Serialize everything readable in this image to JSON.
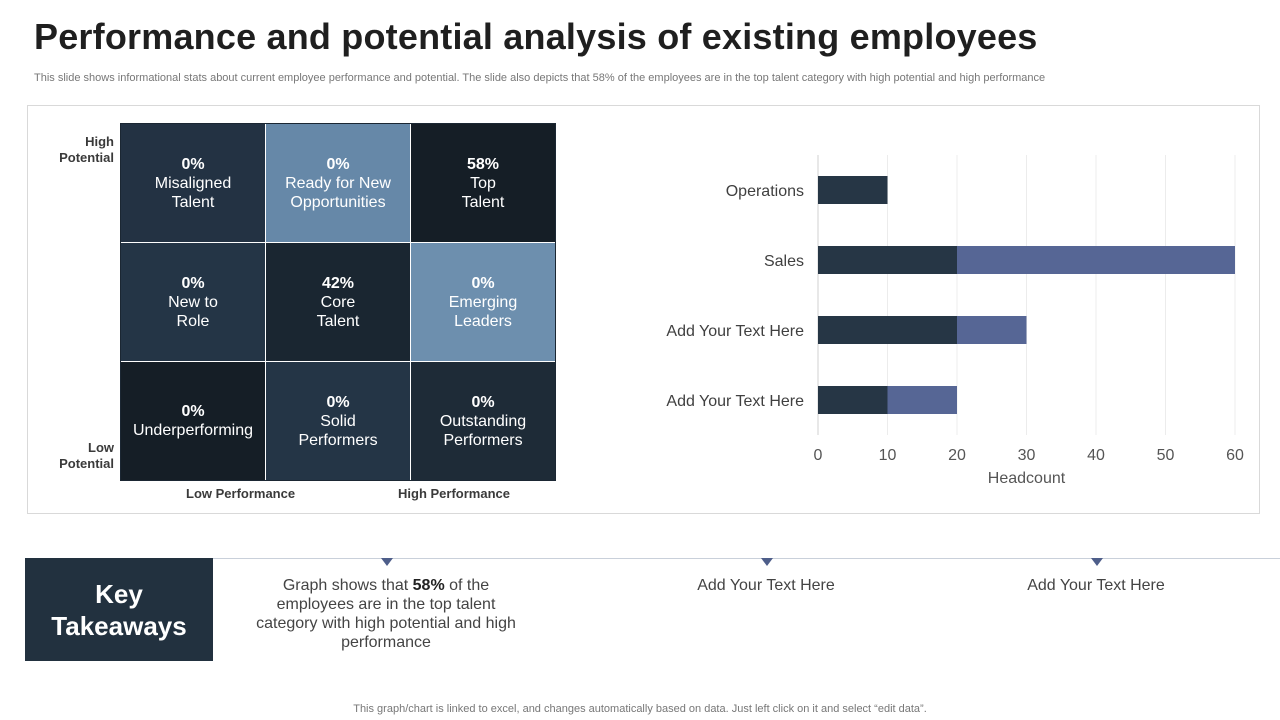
{
  "title": "Performance and potential analysis of existing employees",
  "subtitle": "This slide shows informational stats about current employee performance and potential. The slide also depicts that 58% of the employees are in the top talent category with high potential and high performance",
  "matrix": {
    "y_high": "High\nPotential",
    "y_low": "Low\nPotential",
    "x_low": "Low Performance",
    "x_high": "High Performance",
    "cells": [
      {
        "pct": "0%",
        "label": "Misaligned\nTalent",
        "color": "#233243"
      },
      {
        "pct": "0%",
        "label": "Ready for New\nOpportunities",
        "color": "#6688a8"
      },
      {
        "pct": "58%",
        "label": "Top\nTalent",
        "color": "#151e26"
      },
      {
        "pct": "0%",
        "label": "New to\nRole",
        "color": "#243546"
      },
      {
        "pct": "42%",
        "label": "Core\nTalent",
        "color": "#1a2631"
      },
      {
        "pct": "0%",
        "label": "Emerging\nLeaders",
        "color": "#6d8fae"
      },
      {
        "pct": "0%",
        "label": "Underperforming",
        "color": "#151e26"
      },
      {
        "pct": "0%",
        "label": "Solid\nPerformers",
        "color": "#243546"
      },
      {
        "pct": "0%",
        "label": "Outstanding\nPerformers",
        "color": "#1e2b37"
      }
    ]
  },
  "chart_data": {
    "type": "bar",
    "orientation": "horizontal",
    "stacked": true,
    "categories": [
      "Operations",
      "Sales",
      "Add Your Text Here",
      "Add Your Text Here"
    ],
    "series": [
      {
        "values": [
          10,
          20,
          20,
          10
        ],
        "color": "#263645"
      },
      {
        "values": [
          0,
          40,
          10,
          10
        ],
        "color": "#566695"
      }
    ],
    "xlabel": "Headcount",
    "xlim": [
      0,
      60
    ],
    "xticks": [
      0,
      10,
      20,
      30,
      40,
      50,
      60
    ],
    "grid": true
  },
  "takeaways": {
    "heading": "Key\nTakeaways",
    "item1_prefix": "Graph shows that ",
    "item1_bold": "58%",
    "item1_suffix": " of the employees are in the top talent category with high potential and high performance",
    "item2": "Add Your Text Here",
    "item3": "Add Your Text Here"
  },
  "footer": "This graph/chart is linked to excel, and changes automatically based on data. Just left click on it and select “edit data”."
}
